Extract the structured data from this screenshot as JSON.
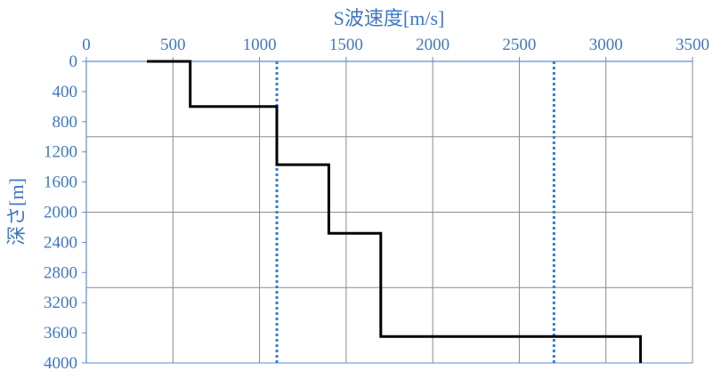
{
  "chart_data": {
    "type": "line",
    "title": "",
    "xlabel": "S波速度[m/s]",
    "ylabel": "深さ[m]",
    "xlim": [
      0,
      3500
    ],
    "ylim": [
      0,
      4000
    ],
    "y_inverted": true,
    "x_axis_position": "top",
    "x_ticks": [
      "0",
      "500",
      "1000",
      "1500",
      "2000",
      "2500",
      "3000",
      "3500"
    ],
    "y_ticks": [
      "0",
      "400",
      "800",
      "1200",
      "1600",
      "2000",
      "2400",
      "2800",
      "3200",
      "3600",
      "4000"
    ],
    "grid": {
      "vertical_every": 500,
      "horizontal_every": 1000
    },
    "series": [
      {
        "style": "solid",
        "color": "#000000",
        "points": [
          [
            350,
            0
          ],
          [
            600,
            0
          ],
          [
            600,
            600
          ],
          [
            1100,
            600
          ],
          [
            1100,
            1370
          ],
          [
            1400,
            1370
          ],
          [
            1400,
            2280
          ],
          [
            1700,
            2280
          ],
          [
            1700,
            3650
          ],
          [
            3200,
            3650
          ],
          [
            3200,
            4000
          ]
        ]
      }
    ],
    "reference_lines": [
      {
        "x": 1100,
        "style": "dotted",
        "color": "#3a7bd5"
      },
      {
        "x": 2700,
        "style": "dotted",
        "color": "#3a7bd5"
      }
    ],
    "colors": {
      "axis_text": "#3f78c4",
      "axis_line": "#5b8fd6",
      "grid": "#8c8c8c",
      "profile": "#000000"
    }
  }
}
